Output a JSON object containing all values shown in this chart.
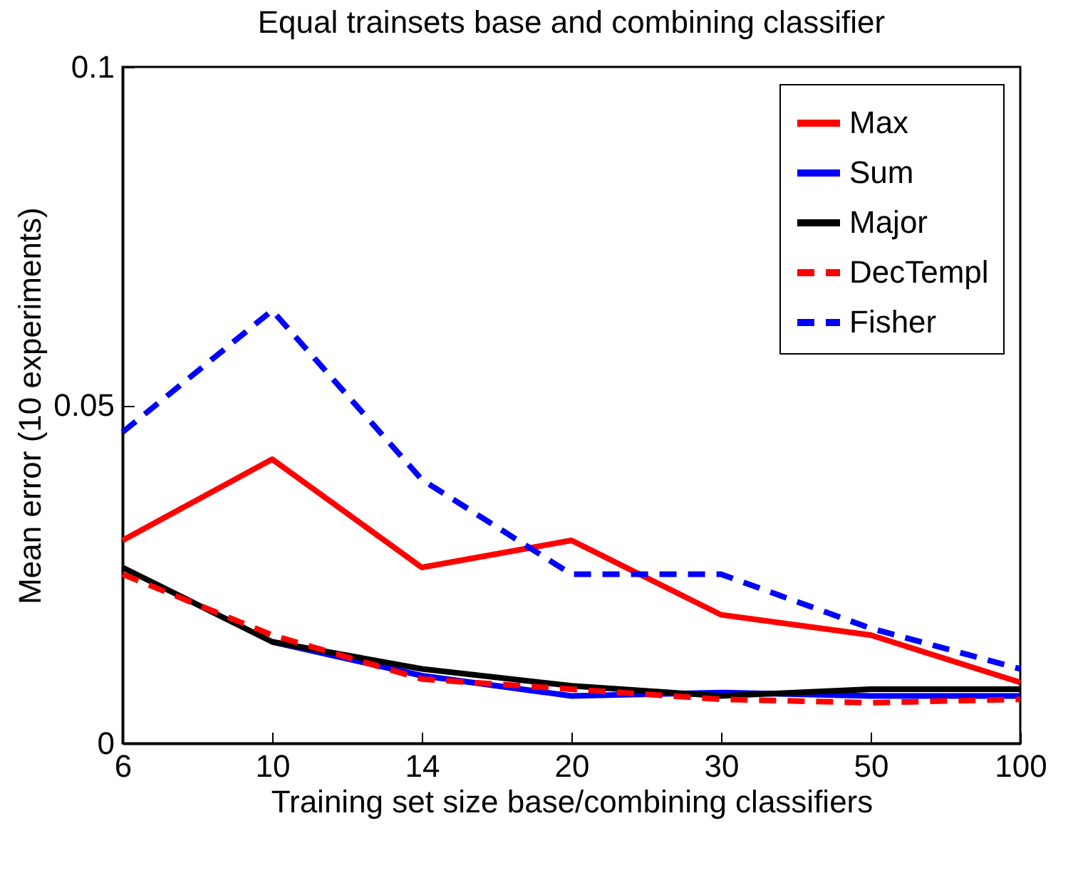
{
  "chart_data": {
    "type": "line",
    "title": "Equal trainsets base and combining classifier",
    "xlabel": "Training set size base/combining classifiers",
    "ylabel": "Mean error (10 experiments)",
    "categories": [
      "6",
      "10",
      "14",
      "20",
      "30",
      "50",
      "100"
    ],
    "ylim": [
      0,
      0.1
    ],
    "yticks": [
      0,
      0.05,
      0.1
    ],
    "legend": "top right",
    "marker": "none",
    "series": [
      {
        "name": "Max",
        "color": "#ff0000",
        "line_style": "solid",
        "values": [
          0.03,
          0.042,
          0.026,
          0.03,
          0.019,
          0.016,
          0.009
        ]
      },
      {
        "name": "Sum",
        "color": "#0000ff",
        "line_style": "solid",
        "values": [
          null,
          0.015,
          0.01,
          0.007,
          0.0075,
          0.007,
          0.007
        ]
      },
      {
        "name": "Major",
        "color": "#000000",
        "line_style": "solid",
        "values": [
          0.026,
          0.015,
          0.011,
          0.0085,
          0.007,
          0.008,
          0.008
        ]
      },
      {
        "name": "DecTempl",
        "color": "#ff0000",
        "line_style": "dashed",
        "values": [
          0.025,
          0.016,
          0.0095,
          0.008,
          0.0065,
          0.006,
          0.0065
        ]
      },
      {
        "name": "Fisher",
        "color": "#0000ff",
        "line_style": "dashed",
        "values": [
          0.046,
          0.064,
          0.039,
          0.025,
          0.025,
          0.017,
          0.011
        ]
      }
    ]
  }
}
